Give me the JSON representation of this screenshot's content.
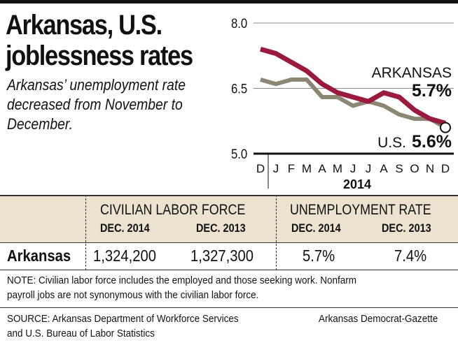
{
  "header": {
    "title_line1": "Arkansas, U.S.",
    "title_line2": "joblessness rates",
    "subtitle": "Arkansas’ unemployment rate decreased from November to December."
  },
  "chart_data": {
    "type": "line",
    "title": "Arkansas, U.S. joblessness rates",
    "x": [
      "D",
      "J",
      "F",
      "M",
      "A",
      "M",
      "J",
      "J",
      "A",
      "S",
      "O",
      "N",
      "D"
    ],
    "xlabel": "2014",
    "ylim": [
      5.0,
      8.0
    ],
    "yticks": [
      "8.0",
      "6.5",
      "5.0"
    ],
    "series": [
      {
        "name": "ARKANSAS",
        "color": "#9b1b3f",
        "values": [
          7.4,
          7.3,
          7.1,
          6.9,
          6.6,
          6.4,
          6.3,
          6.2,
          6.4,
          6.3,
          6.0,
          5.8,
          5.7
        ],
        "end_label": "5.7%"
      },
      {
        "name": "U.S.",
        "color": "#8c8773",
        "values": [
          6.7,
          6.6,
          6.7,
          6.7,
          6.3,
          6.3,
          6.1,
          6.2,
          6.1,
          5.9,
          5.8,
          5.8,
          5.6
        ],
        "end_label": "5.6%"
      }
    ],
    "grid": true
  },
  "table": {
    "groups": [
      "CIVILIAN LABOR FORCE",
      "UNEMPLOYMENT RATE"
    ],
    "subheads": [
      "DEC. 2014",
      "DEC. 2013",
      "DEC. 2014",
      "DEC. 2013"
    ],
    "row": {
      "label": "Arkansas",
      "values": [
        "1,324,200",
        "1,327,300",
        "5.7%",
        "7.4%"
      ]
    }
  },
  "note_line1": "NOTE: Civilian labor force includes the employed and those seeking work. Nonfarm",
  "note_line2": "payroll jobs are not synonymous with the civilian labor force.",
  "source_line1": "SOURCE: Arkansas Department of Workforce Services",
  "source_line2": "and U.S. Bureau of Labor Statistics",
  "credit": "Arkansas Democrat-Gazette"
}
